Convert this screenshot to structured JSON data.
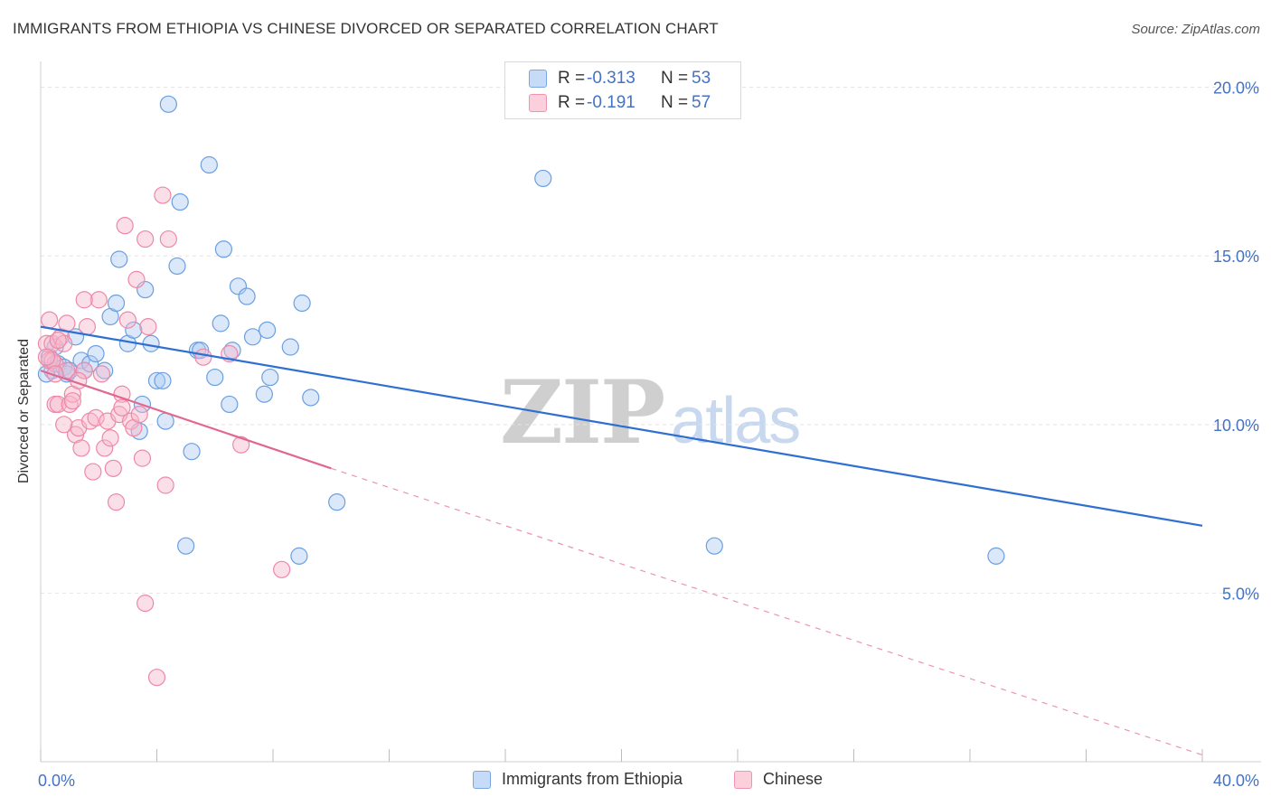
{
  "header": {
    "title": "IMMIGRANTS FROM ETHIOPIA VS CHINESE DIVORCED OR SEPARATED CORRELATION CHART",
    "source": "Source: ZipAtlas.com"
  },
  "watermark": {
    "zip": "ZIP",
    "atlas": "atlas"
  },
  "legend_top": {
    "rows": [
      {
        "r_label": "R =",
        "r_value": "-0.313",
        "n_label": "N =",
        "n_value": "53",
        "color": "#aecbf2"
      },
      {
        "r_label": "R =",
        "r_value": "-0.191",
        "n_label": "N =",
        "n_value": "57",
        "color": "#f7b9cb"
      }
    ]
  },
  "legend_bottom": {
    "items": [
      {
        "label": "Immigrants from Ethiopia",
        "color": "#aecbf2"
      },
      {
        "label": "Chinese",
        "color": "#f7b9cb"
      }
    ]
  },
  "chart_data": {
    "type": "scatter",
    "title": "IMMIGRANTS FROM ETHIOPIA VS CHINESE DIVORCED OR SEPARATED CORRELATION CHART",
    "xlabel": "",
    "ylabel": "Divorced or Separated",
    "xlim": [
      0,
      40
    ],
    "ylim": [
      0,
      20.5
    ],
    "x_tick_labels": [
      "0.0%",
      "40.0%"
    ],
    "y_ticks": [
      5,
      10,
      15,
      20
    ],
    "y_tick_labels": [
      "5.0%",
      "10.0%",
      "15.0%",
      "20.0%"
    ],
    "grid": true,
    "series": [
      {
        "name": "Immigrants from Ethiopia",
        "color": "#6b9fe0",
        "fill": "#aecbf2",
        "trend": {
          "x": [
            0,
            40
          ],
          "y": [
            12.9,
            7.0
          ],
          "dashed_extension": false,
          "line_color": "#2e6fd1"
        },
        "points": [
          [
            0.3,
            12.0
          ],
          [
            0.4,
            11.6
          ],
          [
            0.5,
            12.3
          ],
          [
            0.6,
            11.8
          ],
          [
            0.8,
            11.7
          ],
          [
            0.9,
            11.5
          ],
          [
            1.0,
            11.6
          ],
          [
            1.2,
            12.6
          ],
          [
            1.4,
            11.9
          ],
          [
            1.5,
            11.6
          ],
          [
            1.7,
            11.8
          ],
          [
            1.9,
            12.1
          ],
          [
            2.2,
            11.6
          ],
          [
            2.4,
            13.2
          ],
          [
            2.6,
            13.6
          ],
          [
            2.7,
            14.9
          ],
          [
            3.0,
            12.4
          ],
          [
            3.2,
            12.8
          ],
          [
            3.4,
            9.8
          ],
          [
            3.5,
            10.6
          ],
          [
            3.6,
            14.0
          ],
          [
            3.8,
            12.4
          ],
          [
            4.0,
            11.3
          ],
          [
            4.2,
            11.3
          ],
          [
            4.3,
            10.1
          ],
          [
            4.4,
            19.5
          ],
          [
            4.7,
            14.7
          ],
          [
            4.8,
            16.6
          ],
          [
            5.0,
            6.4
          ],
          [
            5.2,
            9.2
          ],
          [
            5.4,
            12.2
          ],
          [
            5.5,
            12.2
          ],
          [
            5.8,
            17.7
          ],
          [
            6.0,
            11.4
          ],
          [
            6.2,
            13.0
          ],
          [
            6.3,
            15.2
          ],
          [
            6.5,
            10.6
          ],
          [
            6.6,
            12.2
          ],
          [
            6.8,
            14.1
          ],
          [
            7.1,
            13.8
          ],
          [
            7.3,
            12.6
          ],
          [
            7.7,
            10.9
          ],
          [
            7.8,
            12.8
          ],
          [
            7.9,
            11.4
          ],
          [
            8.6,
            12.3
          ],
          [
            8.9,
            6.1
          ],
          [
            9.0,
            13.6
          ],
          [
            9.3,
            10.8
          ],
          [
            10.2,
            7.7
          ],
          [
            17.3,
            17.3
          ],
          [
            23.2,
            6.4
          ],
          [
            32.9,
            6.1
          ],
          [
            0.2,
            11.5
          ]
        ]
      },
      {
        "name": "Chinese",
        "color": "#ee88a6",
        "fill": "#f7b9cb",
        "trend": {
          "x": [
            0,
            10
          ],
          "y": [
            11.6,
            8.7
          ],
          "dashed_extension": true,
          "extension_to": [
            40,
            0.2
          ],
          "line_color": "#e2678f"
        },
        "points": [
          [
            0.2,
            12.4
          ],
          [
            0.3,
            11.9
          ],
          [
            0.4,
            12.4
          ],
          [
            0.5,
            11.8
          ],
          [
            0.5,
            10.6
          ],
          [
            0.6,
            10.6
          ],
          [
            0.7,
            12.6
          ],
          [
            0.8,
            12.4
          ],
          [
            0.9,
            11.6
          ],
          [
            1.0,
            10.6
          ],
          [
            1.1,
            10.9
          ],
          [
            1.2,
            9.7
          ],
          [
            1.3,
            9.9
          ],
          [
            1.4,
            9.3
          ],
          [
            1.5,
            11.6
          ],
          [
            1.6,
            12.9
          ],
          [
            1.7,
            10.1
          ],
          [
            1.8,
            8.6
          ],
          [
            1.9,
            10.2
          ],
          [
            2.0,
            13.7
          ],
          [
            2.1,
            11.5
          ],
          [
            2.2,
            9.3
          ],
          [
            2.3,
            10.1
          ],
          [
            2.4,
            9.6
          ],
          [
            2.5,
            8.7
          ],
          [
            2.6,
            7.7
          ],
          [
            2.7,
            10.3
          ],
          [
            2.8,
            10.9
          ],
          [
            2.9,
            15.9
          ],
          [
            3.0,
            13.1
          ],
          [
            3.1,
            10.1
          ],
          [
            3.2,
            9.9
          ],
          [
            3.3,
            14.3
          ],
          [
            3.4,
            10.3
          ],
          [
            3.5,
            9.0
          ],
          [
            3.6,
            4.7
          ],
          [
            3.7,
            12.9
          ],
          [
            4.0,
            2.5
          ],
          [
            4.2,
            16.8
          ],
          [
            4.3,
            8.2
          ],
          [
            4.4,
            15.5
          ],
          [
            5.6,
            12.0
          ],
          [
            6.5,
            12.1
          ],
          [
            6.9,
            9.4
          ],
          [
            8.3,
            5.7
          ],
          [
            0.3,
            13.1
          ],
          [
            0.6,
            12.5
          ],
          [
            0.9,
            13.0
          ],
          [
            0.4,
            11.9
          ],
          [
            1.5,
            13.7
          ],
          [
            0.2,
            12.0
          ],
          [
            1.3,
            11.3
          ],
          [
            0.8,
            10.0
          ],
          [
            1.1,
            10.7
          ],
          [
            2.8,
            10.5
          ],
          [
            3.6,
            15.5
          ],
          [
            0.5,
            11.5
          ]
        ]
      }
    ]
  }
}
